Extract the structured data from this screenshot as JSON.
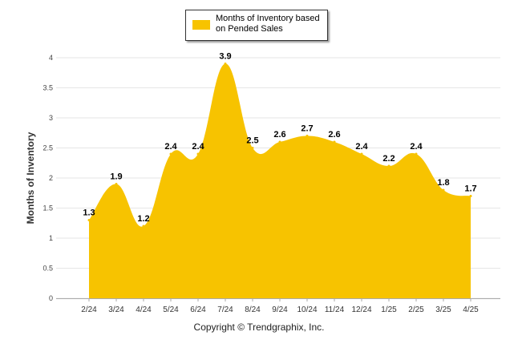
{
  "colors": {
    "fill": "#F7C300",
    "grid": "#e6e6e6",
    "axis": "#aaaaaa"
  },
  "legend": {
    "label": "Months of Inventory based on Pended Sales"
  },
  "footer": {
    "copyright": "Copyright © Trendgraphix, Inc."
  },
  "chart_data": {
    "type": "area",
    "categories": [
      "2/24",
      "3/24",
      "4/24",
      "5/24",
      "6/24",
      "7/24",
      "8/24",
      "9/24",
      "10/24",
      "11/24",
      "12/24",
      "1/25",
      "2/25",
      "3/25",
      "4/25"
    ],
    "series": [
      {
        "name": "Months of Inventory based on Pended Sales",
        "values": [
          1.3,
          1.9,
          1.2,
          2.4,
          2.4,
          3.9,
          2.5,
          2.6,
          2.7,
          2.6,
          2.4,
          2.2,
          2.4,
          1.8,
          1.7
        ]
      }
    ],
    "data_labels": [
      "1.3",
      "1.9",
      "1.2",
      "2.4",
      "2.4",
      "3.9",
      "2.5",
      "2.6",
      "2.7",
      "2.6",
      "2.4",
      "2.2",
      "2.4",
      "1.8",
      "1.7"
    ],
    "ylabel": "Months of Inventory",
    "xlabel": "",
    "ylim": [
      0,
      4
    ],
    "yticks": [
      "0",
      "0.5",
      "1",
      "1.5",
      "2",
      "2.5",
      "3",
      "3.5",
      "4"
    ],
    "grid": true,
    "legend_position": "top-center"
  }
}
